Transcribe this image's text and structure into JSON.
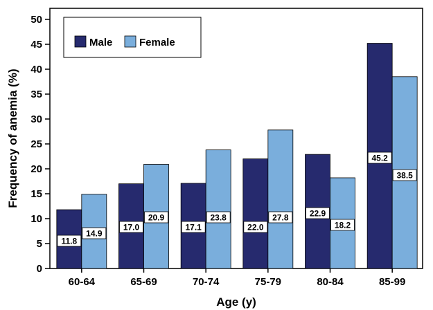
{
  "chart_data": {
    "type": "bar",
    "title": "",
    "xlabel": "Age (y)",
    "ylabel": "Frequency of anemia (%)",
    "categories": [
      "60-64",
      "65-69",
      "70-74",
      "75-79",
      "80-84",
      "85-99"
    ],
    "series": [
      {
        "name": "Male",
        "color": "#262a6e",
        "values": [
          11.8,
          17.0,
          17.1,
          22.0,
          22.9,
          45.2
        ]
      },
      {
        "name": "Female",
        "color": "#7aaedc",
        "values": [
          14.9,
          20.9,
          23.8,
          27.8,
          18.2,
          38.5
        ]
      }
    ],
    "ylim": [
      0,
      50
    ],
    "yticks": [
      0,
      5,
      10,
      15,
      20,
      25,
      30,
      35,
      40,
      45,
      50
    ],
    "legend_position": "top-left",
    "grid": false
  }
}
